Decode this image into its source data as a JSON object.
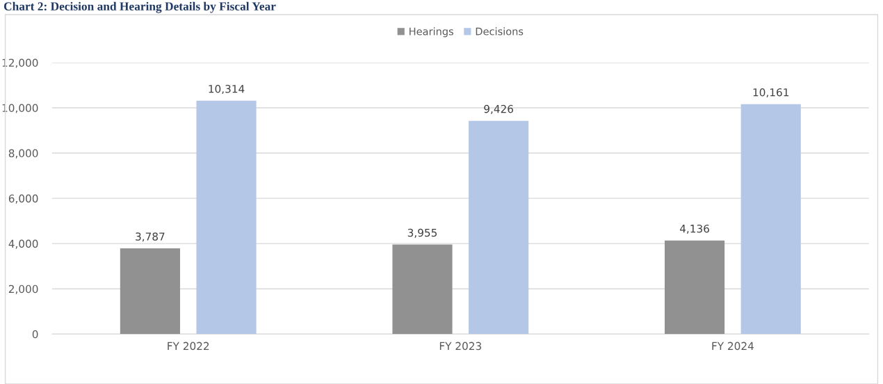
{
  "chart_data": {
    "type": "bar",
    "title": "Chart 2: Decision and Hearing Details by Fiscal Year",
    "categories": [
      "FY 2022",
      "FY 2023",
      "FY 2024"
    ],
    "series": [
      {
        "name": "Hearings",
        "color": "#919191",
        "values": [
          3787,
          3955,
          4136
        ]
      },
      {
        "name": "Decisions",
        "color": "#b4c7e7",
        "values": [
          10314,
          9426,
          10161
        ]
      }
    ],
    "ylim": [
      0,
      12000
    ],
    "yticks": [
      {
        "value": 0,
        "label": "0"
      },
      {
        "value": 2000,
        "label": "2,000"
      },
      {
        "value": 4000,
        "label": "4,000"
      },
      {
        "value": 6000,
        "label": "6,000"
      },
      {
        "value": 8000,
        "label": "8,000"
      },
      {
        "value": 10000,
        "label": "10,000"
      },
      {
        "value": 12000,
        "label": "12,000"
      }
    ],
    "value_labels": [
      [
        "3,787",
        "3,955",
        "4,136"
      ],
      [
        "10,314",
        "9,426",
        "10,161"
      ]
    ],
    "grid": "y",
    "legend": "top"
  }
}
